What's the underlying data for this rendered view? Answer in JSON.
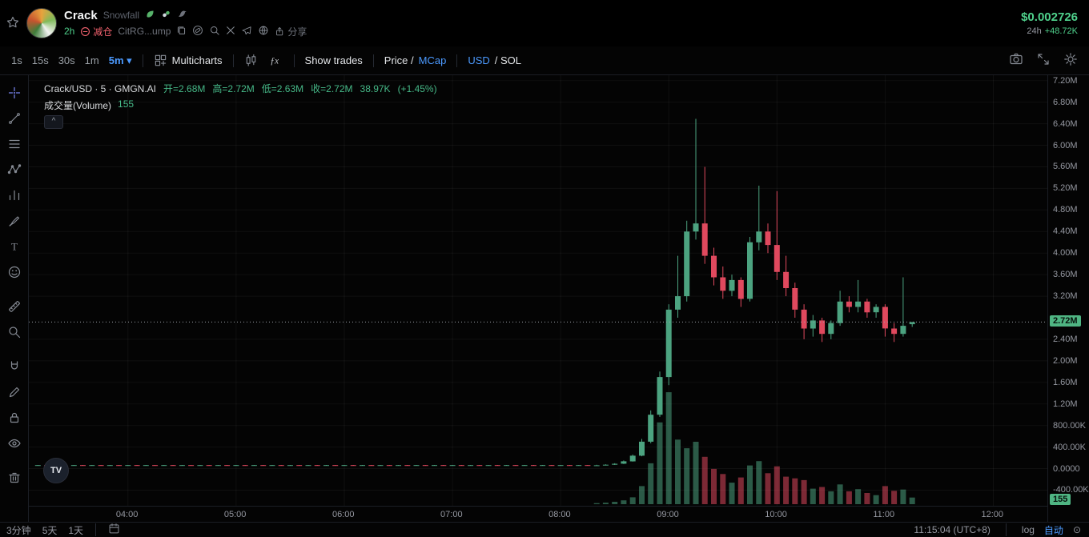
{
  "colors": {
    "accent_blue": "#4C9AFF",
    "text_green": "#4FD18C",
    "tag_red": "#F0616D",
    "badge_green": "#4FB583"
  },
  "header": {
    "token_name": "Crack",
    "token_label": "Snowfall",
    "age": "2h",
    "position_tag": "减仓",
    "contract_short": "CitRG...ump",
    "share_label": "分享",
    "price": "$0.002726",
    "change_period": "24h",
    "change_value": "+48.72K"
  },
  "toolbar": {
    "timeframes": [
      "1s",
      "15s",
      "30s",
      "1m",
      "5m"
    ],
    "active_timeframe": "5m",
    "caret": "▾",
    "multicharts": "Multicharts",
    "fx": "ƒx",
    "show_trades": "Show trades",
    "price_part": "Price /",
    "mcap_part": "MCap",
    "usd_part": "USD",
    "sol_part": "/ SOL"
  },
  "legend": {
    "series_title": "Crack/USD · 5 · GMGN.AI",
    "open": "开=2.68M",
    "high": "高=2.72M",
    "low": "低=2.63M",
    "close": "收=2.72M",
    "volume_text": "38.97K",
    "change_text": "(+1.45%)",
    "volume_label": "成交量(Volume)",
    "volume_value": "155",
    "collapse_glyph": "^"
  },
  "badges": {
    "price": "2.72M",
    "volume": "155"
  },
  "bottom_bar": {
    "ranges": [
      "3分钟",
      "5天",
      "1天"
    ],
    "clock": "11:15:04 (UTC+8)",
    "scale_log": "log",
    "scale_auto": "自动",
    "reset_glyph": "⊙"
  },
  "tv_logo": "TV",
  "chart_data": {
    "type": "candlestick",
    "symbol": "Crack/USD",
    "interval": "5m",
    "interval_min": 5,
    "exchange": "GMGN.AI",
    "title": "Crack/USD · 5 · GMGN.AI",
    "time_axis": {
      "start": "03:05",
      "end": "12:30"
    },
    "price_axis": {
      "min": -0.69,
      "max": 7.3,
      "unit": "M (USD)"
    },
    "x_ticks": [
      "04:00",
      "05:00",
      "06:00",
      "07:00",
      "08:00",
      "09:00",
      "10:00",
      "11:00",
      "12:00"
    ],
    "y_ticks": [
      {
        "label": "7.20M",
        "value": 7.2
      },
      {
        "label": "6.80M",
        "value": 6.8
      },
      {
        "label": "6.40M",
        "value": 6.4
      },
      {
        "label": "6.00M",
        "value": 6.0
      },
      {
        "label": "5.60M",
        "value": 5.6
      },
      {
        "label": "5.20M",
        "value": 5.2
      },
      {
        "label": "4.80M",
        "value": 4.8
      },
      {
        "label": "4.40M",
        "value": 4.4
      },
      {
        "label": "4.00M",
        "value": 4.0
      },
      {
        "label": "3.60M",
        "value": 3.6
      },
      {
        "label": "3.20M",
        "value": 3.2
      },
      {
        "label": "2.40M",
        "value": 2.4
      },
      {
        "label": "2.00M",
        "value": 2.0
      },
      {
        "label": "1.60M",
        "value": 1.6
      },
      {
        "label": "1.20M",
        "value": 1.2
      },
      {
        "label": "800.00K",
        "value": 0.8
      },
      {
        "label": "400.00K",
        "value": 0.4
      },
      {
        "label": "0.0000",
        "value": 0.0
      },
      {
        "label": "-400.00K",
        "value": -0.4
      }
    ],
    "current_price": 2.72,
    "current_volume": 155,
    "ohlc_current": {
      "open": 2.68,
      "high": 2.72,
      "low": 2.63,
      "close": 2.72,
      "turnover": "38.97K",
      "change_pct": 1.45
    },
    "volume_pane_frac": 0.26,
    "flat_segment": {
      "from": "03:10",
      "to": "08:15",
      "price": 0.06,
      "volume": 4
    },
    "colors": {
      "up": "#4CA380",
      "down": "#E0495E"
    },
    "candle_columns": [
      "time",
      "open",
      "high",
      "low",
      "close",
      "volume"
    ],
    "candles": [
      [
        "08:20",
        0.055,
        0.07,
        0.05,
        0.062,
        25
      ],
      [
        "08:25",
        0.062,
        0.08,
        0.058,
        0.072,
        35
      ],
      [
        "08:30",
        0.072,
        0.1,
        0.068,
        0.09,
        55
      ],
      [
        "08:35",
        0.09,
        0.15,
        0.085,
        0.135,
        90
      ],
      [
        "08:40",
        0.135,
        0.26,
        0.13,
        0.24,
        160
      ],
      [
        "08:45",
        0.24,
        0.55,
        0.23,
        0.5,
        420
      ],
      [
        "08:50",
        0.5,
        1.08,
        0.47,
        1.0,
        950
      ],
      [
        "08:55",
        1.0,
        1.8,
        0.96,
        1.7,
        1900
      ],
      [
        "09:00",
        1.7,
        3.05,
        1.55,
        2.95,
        2600
      ],
      [
        "09:05",
        2.95,
        3.95,
        2.8,
        3.2,
        1500
      ],
      [
        "09:10",
        3.2,
        4.6,
        3.1,
        4.4,
        1300
      ],
      [
        "09:15",
        4.4,
        6.49,
        4.25,
        4.55,
        1450
      ],
      [
        "09:20",
        4.55,
        5.6,
        3.8,
        3.95,
        1100
      ],
      [
        "09:25",
        3.95,
        4.1,
        3.4,
        3.55,
        820
      ],
      [
        "09:30",
        3.55,
        3.75,
        3.15,
        3.3,
        700
      ],
      [
        "09:35",
        3.3,
        3.6,
        3.2,
        3.5,
        500
      ],
      [
        "09:40",
        3.5,
        3.55,
        3.0,
        3.15,
        620
      ],
      [
        "09:45",
        3.15,
        4.3,
        3.1,
        4.2,
        900
      ],
      [
        "09:50",
        4.2,
        5.25,
        4.05,
        4.4,
        1000
      ],
      [
        "09:55",
        4.4,
        4.55,
        4.0,
        4.15,
        720
      ],
      [
        "10:00",
        4.15,
        5.15,
        3.5,
        3.65,
        880
      ],
      [
        "10:05",
        3.65,
        3.95,
        3.2,
        3.35,
        640
      ],
      [
        "10:10",
        3.35,
        3.45,
        2.8,
        2.95,
        600
      ],
      [
        "10:15",
        2.95,
        3.05,
        2.4,
        2.6,
        560
      ],
      [
        "10:20",
        2.6,
        2.85,
        2.45,
        2.75,
        360
      ],
      [
        "10:25",
        2.75,
        2.8,
        2.35,
        2.5,
        400
      ],
      [
        "10:30",
        2.5,
        2.75,
        2.4,
        2.7,
        300
      ],
      [
        "10:35",
        2.7,
        3.3,
        2.65,
        3.1,
        460
      ],
      [
        "10:40",
        3.1,
        3.2,
        2.9,
        3.0,
        300
      ],
      [
        "10:45",
        3.0,
        3.5,
        2.9,
        3.1,
        350
      ],
      [
        "10:50",
        3.1,
        3.15,
        2.8,
        2.9,
        260
      ],
      [
        "10:55",
        2.9,
        3.05,
        2.8,
        3.0,
        210
      ],
      [
        "11:00",
        3.0,
        3.05,
        2.45,
        2.6,
        420
      ],
      [
        "11:05",
        2.6,
        2.7,
        2.35,
        2.5,
        310
      ],
      [
        "11:10",
        2.5,
        3.55,
        2.45,
        2.65,
        340
      ],
      [
        "11:15",
        2.68,
        2.72,
        2.63,
        2.72,
        155
      ]
    ]
  }
}
